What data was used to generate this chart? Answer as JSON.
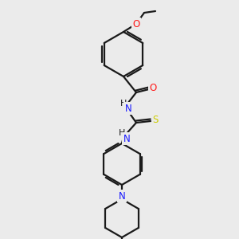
{
  "background_color": "#ebebeb",
  "bond_color": "#1a1a1a",
  "atom_colors": {
    "N": "#1919ff",
    "O": "#ff1919",
    "S": "#cccc00",
    "C": "#1a1a1a"
  },
  "lw": 1.6,
  "fontsize": 8.5
}
